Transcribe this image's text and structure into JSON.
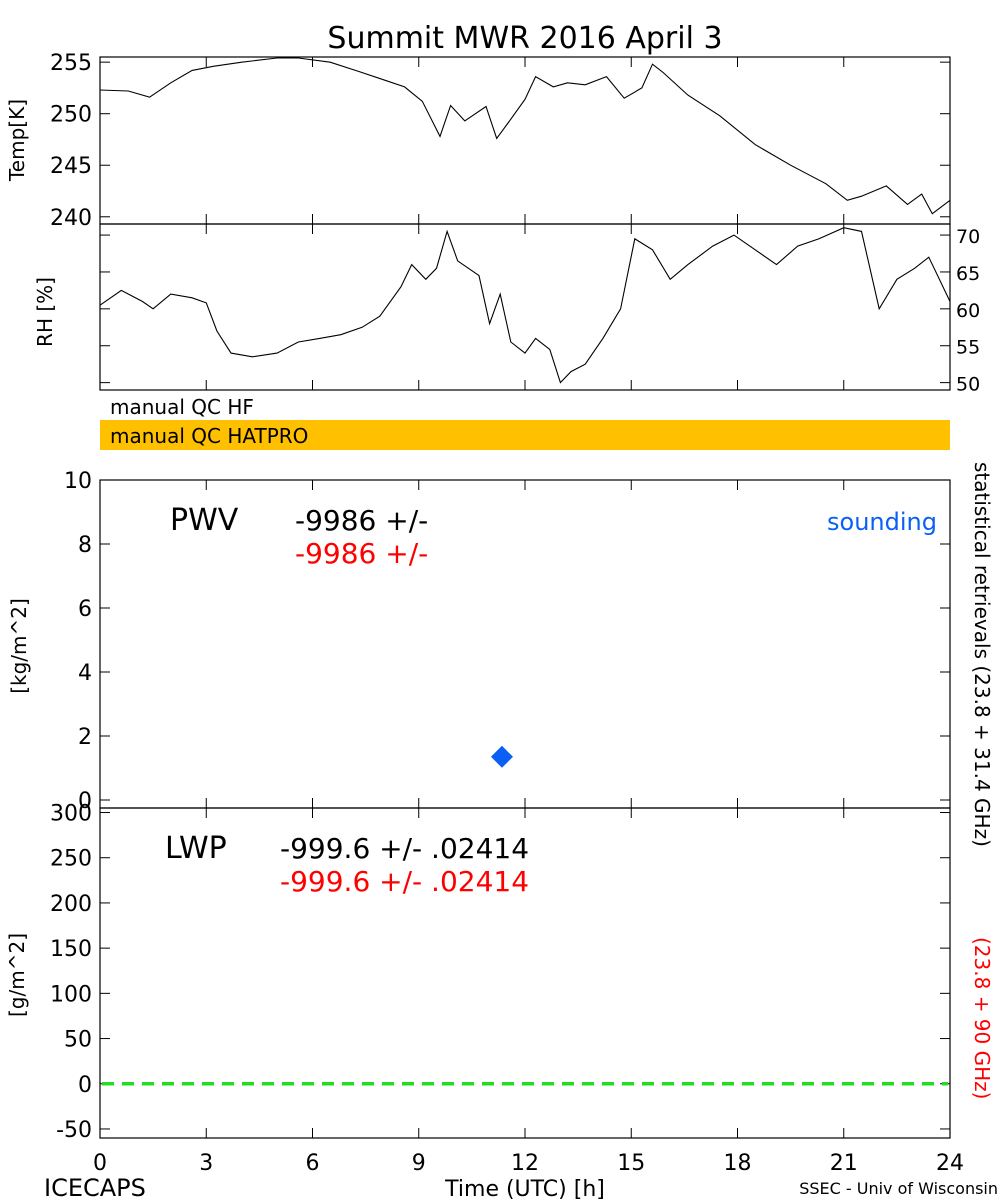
{
  "title": "Summit MWR 2016 April  3",
  "colors": {
    "hatpro_band": "#ffc000",
    "sounding": "#0a5ff5",
    "second_value": "#ff0000",
    "zero_line": "#22dd22"
  },
  "footer": {
    "left": "ICECAPS",
    "center": "Time (UTC) [h]",
    "right": "SSEC - Univ of Wisconsin"
  },
  "qc_bands": {
    "hf": "manual QC HF",
    "hatpro": "manual QC HATPRO"
  },
  "right_labels": {
    "black": "statistical retrievals (23.8 + 31.4 GHz)",
    "red": "(23.8 + 90 GHz)"
  },
  "chart_data": [
    {
      "type": "line",
      "name": "temp",
      "ylabel": "Temp[K]",
      "xlim": [
        0,
        24
      ],
      "ylim": [
        239.3,
        255.5
      ],
      "yticks": [
        "240",
        "245",
        "250",
        "255"
      ],
      "x": [
        0,
        0.8,
        1.4,
        2.0,
        2.6,
        3.2,
        4.0,
        5.0,
        5.6,
        6.5,
        7.3,
        8.0,
        8.6,
        9.1,
        9.6,
        9.9,
        10.3,
        10.9,
        11.2,
        11.5,
        12.0,
        12.3,
        12.8,
        13.2,
        13.7,
        14.3,
        14.8,
        15.3,
        15.6,
        15.9,
        16.6,
        17.5,
        18.5,
        19.5,
        20.5,
        21.1,
        21.5,
        22.2,
        22.8,
        23.2,
        23.5,
        24.0
      ],
      "y": [
        252.3,
        252.2,
        251.6,
        253.0,
        254.2,
        254.6,
        255.0,
        255.4,
        255.4,
        255.0,
        254.1,
        253.3,
        252.6,
        251.2,
        247.8,
        250.8,
        249.3,
        250.7,
        247.6,
        249.0,
        251.4,
        253.6,
        252.6,
        253.0,
        252.8,
        253.6,
        251.5,
        252.5,
        254.8,
        254.0,
        251.8,
        249.8,
        247.0,
        245.0,
        243.2,
        241.6,
        242.0,
        243.0,
        241.2,
        242.2,
        240.3,
        241.6
      ]
    },
    {
      "type": "line",
      "name": "rh",
      "ylabel": "RH [%]",
      "xlim": [
        0,
        24
      ],
      "ylim": [
        49,
        71.5
      ],
      "yticks": [
        "50",
        "55",
        "60",
        "65",
        "70"
      ],
      "x": [
        0,
        0.6,
        1.2,
        1.5,
        2.0,
        2.6,
        3.0,
        3.3,
        3.7,
        4.3,
        5.0,
        5.6,
        6.2,
        6.8,
        7.4,
        7.9,
        8.5,
        8.8,
        9.2,
        9.5,
        9.8,
        10.1,
        10.7,
        11.0,
        11.3,
        11.6,
        12.0,
        12.3,
        12.7,
        13.0,
        13.3,
        13.7,
        14.2,
        14.7,
        15.1,
        15.6,
        16.1,
        16.6,
        17.3,
        17.9,
        18.5,
        19.1,
        19.7,
        20.3,
        21.0,
        21.5,
        22.0,
        22.5,
        23.0,
        23.4,
        24.0
      ],
      "y": [
        60.5,
        62.5,
        61.0,
        60.0,
        62.0,
        61.5,
        60.8,
        57.0,
        54.0,
        53.5,
        54.0,
        55.5,
        56.0,
        56.5,
        57.5,
        59.0,
        63.0,
        66.0,
        64.0,
        65.5,
        70.5,
        66.5,
        64.5,
        58.0,
        62.0,
        55.5,
        54.0,
        56.0,
        54.5,
        50.0,
        51.5,
        52.5,
        56.0,
        60.0,
        69.5,
        68.0,
        64.0,
        66.0,
        68.5,
        70.0,
        68.0,
        66.0,
        68.5,
        69.5,
        71.0,
        70.5,
        60.0,
        64.0,
        65.5,
        67.0,
        61.0
      ]
    },
    {
      "type": "scatter",
      "name": "pwv",
      "ylabel": "[kg/m^2]",
      "xlim": [
        0,
        24
      ],
      "ylim": [
        -0.25,
        10
      ],
      "yticks": [
        "0",
        "2",
        "4",
        "6",
        "8",
        "10"
      ],
      "label": "PWV",
      "value_black": "-9986 +/-",
      "value_red": "-9986 +/-",
      "legend": "sounding",
      "points": [
        {
          "x": 11.35,
          "y": 1.35
        }
      ]
    },
    {
      "type": "line",
      "name": "lwp",
      "ylabel": "[g/m^2]",
      "xlim": [
        0,
        24
      ],
      "ylim": [
        -60,
        305
      ],
      "yticks": [
        "-50",
        "0",
        "50",
        "100",
        "150",
        "200",
        "250",
        "300"
      ],
      "xticks": [
        "0",
        "3",
        "6",
        "9",
        "12",
        "15",
        "18",
        "21",
        "24"
      ],
      "label": "LWP",
      "value_black": "-999.6 +/- .02414",
      "value_red": "-999.6 +/- .02414",
      "reference_line": 0
    }
  ]
}
